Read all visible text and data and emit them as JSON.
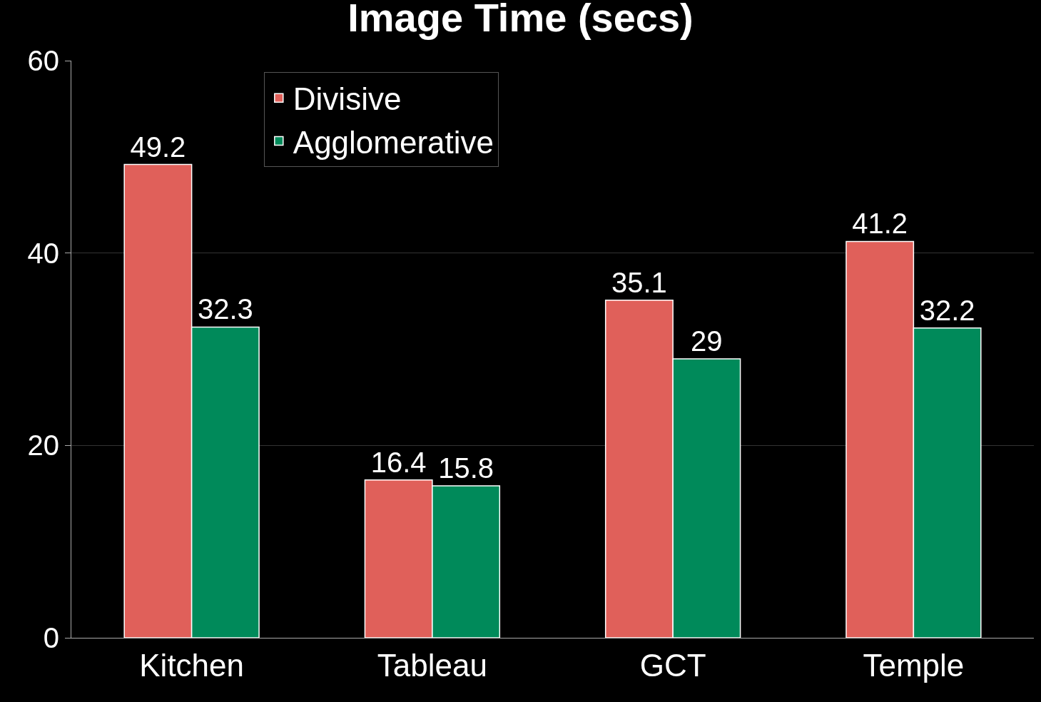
{
  "chart_data": {
    "type": "bar",
    "title": "Image Time (secs)",
    "categories": [
      "Kitchen",
      "Tableau",
      "GCT",
      "Temple"
    ],
    "series": [
      {
        "name": "Divisive",
        "color": "#e0605a",
        "values": [
          49.2,
          16.4,
          35.1,
          41.2
        ]
      },
      {
        "name": "Agglomerative",
        "color": "#008a5a",
        "values": [
          32.3,
          15.8,
          29,
          32.2
        ]
      }
    ],
    "ylim": [
      0,
      60
    ],
    "yticks": [
      0,
      20,
      40,
      60
    ],
    "grid": "y",
    "legend": "top left",
    "data_labels": true
  }
}
